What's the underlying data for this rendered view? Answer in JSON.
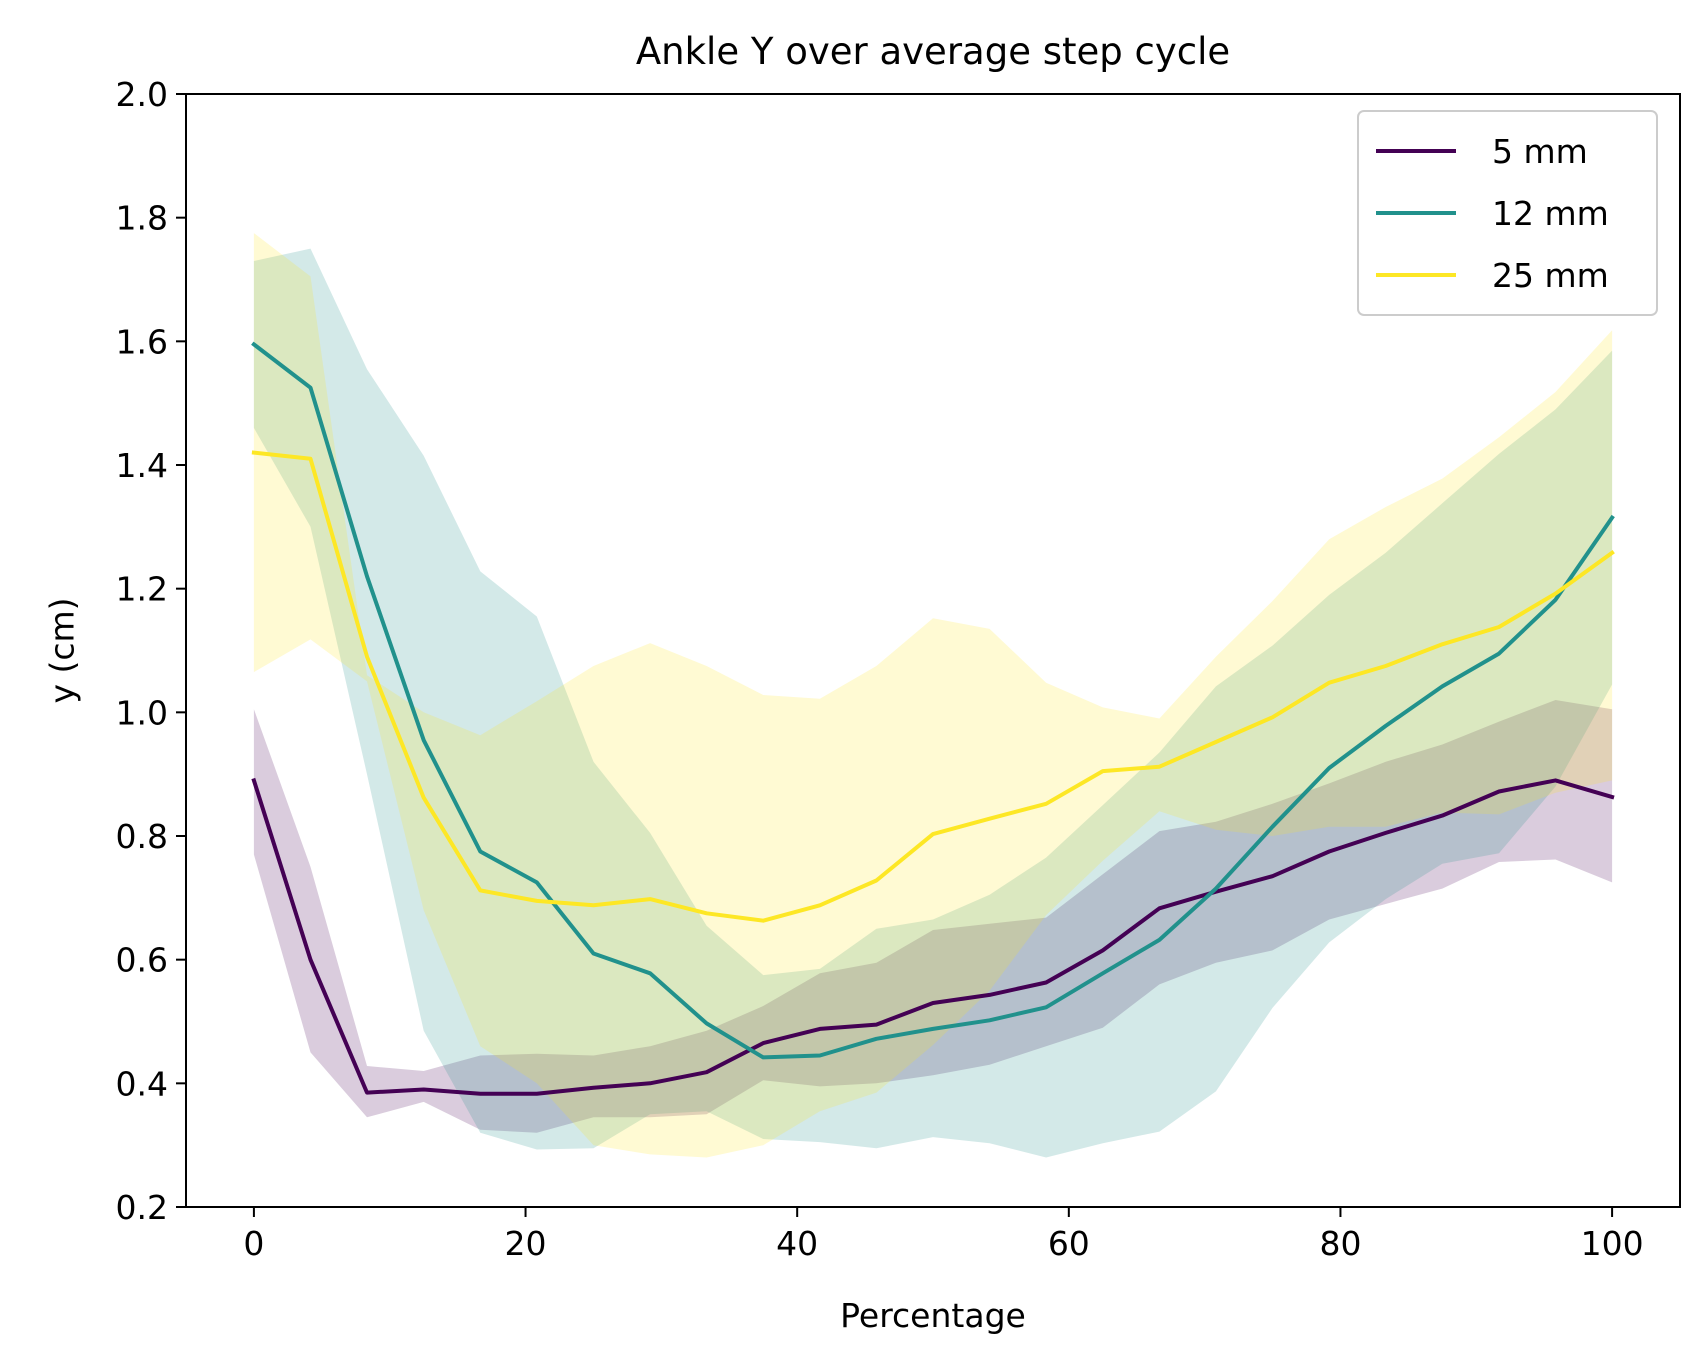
{
  "chart_data": {
    "type": "line",
    "title": "Ankle Y over average step cycle",
    "xlabel": "Percentage",
    "ylabel": "y (cm)",
    "xlim": [
      -5,
      105
    ],
    "ylim": [
      0.2,
      2.0
    ],
    "x_ticks": [
      0,
      20,
      40,
      60,
      80,
      100
    ],
    "x_tick_labels": [
      "0",
      "20",
      "40",
      "60",
      "80",
      "100"
    ],
    "y_ticks": [
      0.2,
      0.4,
      0.6,
      0.8,
      1.0,
      1.2,
      1.4,
      1.6,
      1.8,
      2.0
    ],
    "y_tick_labels": [
      "0.2",
      "0.4",
      "0.6",
      "0.8",
      "1.0",
      "1.2",
      "1.4",
      "1.6",
      "1.8",
      "2.0"
    ],
    "grid": false,
    "legend_position": "top-right",
    "x": [
      0,
      4.17,
      8.33,
      12.5,
      16.67,
      20.83,
      25,
      29.17,
      33.33,
      37.5,
      41.67,
      45.83,
      50,
      54.17,
      58.33,
      62.5,
      66.67,
      70.83,
      75,
      79.17,
      83.33,
      87.5,
      91.67,
      95.83,
      100
    ],
    "series": [
      {
        "name": "5 mm",
        "color": "#440154",
        "band_color": "#440154",
        "values": [
          0.89,
          0.6,
          0.385,
          0.39,
          0.383,
          0.383,
          0.393,
          0.4,
          0.418,
          0.465,
          0.488,
          0.495,
          0.53,
          0.543,
          0.563,
          0.615,
          0.683,
          0.71,
          0.735,
          0.775,
          0.805,
          0.833,
          0.872,
          0.89,
          0.863
        ],
        "lower": [
          0.77,
          0.45,
          0.345,
          0.37,
          0.325,
          0.32,
          0.345,
          0.345,
          0.35,
          0.405,
          0.395,
          0.4,
          0.413,
          0.43,
          0.46,
          0.49,
          0.56,
          0.595,
          0.615,
          0.665,
          0.69,
          0.715,
          0.758,
          0.762,
          0.725
        ],
        "upper": [
          1.005,
          0.75,
          0.428,
          0.42,
          0.445,
          0.448,
          0.445,
          0.46,
          0.485,
          0.525,
          0.578,
          0.595,
          0.648,
          0.658,
          0.668,
          0.738,
          0.808,
          0.823,
          0.852,
          0.885,
          0.92,
          0.948,
          0.985,
          1.02,
          1.005
        ]
      },
      {
        "name": "12 mm",
        "color": "#21918c",
        "band_color": "#21918c",
        "values": [
          1.595,
          1.525,
          1.22,
          0.955,
          0.775,
          0.725,
          0.61,
          0.578,
          0.497,
          0.442,
          0.445,
          0.472,
          0.488,
          0.502,
          0.523,
          0.578,
          0.632,
          0.715,
          0.815,
          0.91,
          0.978,
          1.042,
          1.095,
          1.182,
          1.315
        ],
        "lower": [
          1.46,
          1.3,
          0.9,
          0.485,
          0.32,
          0.293,
          0.295,
          0.35,
          0.355,
          0.31,
          0.305,
          0.295,
          0.313,
          0.303,
          0.28,
          0.303,
          0.322,
          0.387,
          0.522,
          0.628,
          0.698,
          0.755,
          0.772,
          0.88,
          1.045
        ],
        "upper": [
          1.73,
          1.75,
          1.555,
          1.415,
          1.228,
          1.155,
          0.92,
          0.805,
          0.655,
          0.575,
          0.585,
          0.65,
          0.665,
          0.705,
          0.765,
          0.85,
          0.935,
          1.042,
          1.108,
          1.19,
          1.258,
          1.338,
          1.418,
          1.49,
          1.585
        ]
      },
      {
        "name": "25 mm",
        "color": "#fde725",
        "band_color": "#fde725",
        "values": [
          1.42,
          1.41,
          1.09,
          0.862,
          0.712,
          0.695,
          0.688,
          0.698,
          0.675,
          0.663,
          0.688,
          0.728,
          0.803,
          0.828,
          0.852,
          0.905,
          0.912,
          0.952,
          0.992,
          1.048,
          1.075,
          1.11,
          1.138,
          1.192,
          1.258
        ],
        "lower": [
          1.065,
          1.118,
          1.05,
          0.68,
          0.46,
          0.4,
          0.3,
          0.285,
          0.28,
          0.3,
          0.355,
          0.385,
          0.462,
          0.55,
          0.672,
          0.76,
          0.84,
          0.81,
          0.8,
          0.815,
          0.815,
          0.838,
          0.835,
          0.87,
          0.89
        ],
        "upper": [
          1.775,
          1.705,
          1.06,
          1.0,
          0.963,
          1.018,
          1.075,
          1.112,
          1.075,
          1.028,
          1.022,
          1.075,
          1.152,
          1.135,
          1.048,
          1.008,
          0.99,
          1.09,
          1.18,
          1.28,
          1.332,
          1.378,
          1.445,
          1.518,
          1.618
        ]
      }
    ]
  }
}
